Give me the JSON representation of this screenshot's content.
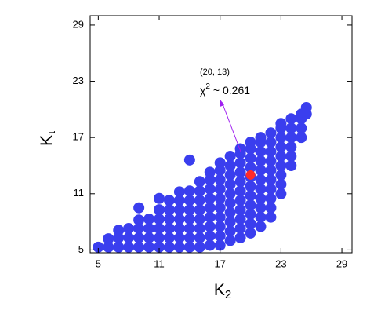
{
  "chart_data": {
    "type": "scatter",
    "xlabel": {
      "text": "K",
      "subscript": "2"
    },
    "ylabel": {
      "text": "K",
      "subscript": "τ"
    },
    "xlim": [
      4.2,
      30
    ],
    "ylim": [
      4.7,
      30
    ],
    "xticks": [
      5,
      11,
      17,
      23,
      29
    ],
    "yticks": [
      5,
      11,
      17,
      23,
      29
    ],
    "annotation": {
      "point": "(20, 13)",
      "symbol": "χ",
      "power": "2",
      "text": "~ 0.261"
    },
    "series": [
      {
        "color": "#3a3eee",
        "x": [
          5,
          6,
          6,
          7,
          7,
          7,
          8,
          8,
          8,
          9,
          9,
          9,
          9,
          9,
          10,
          10,
          10,
          10,
          11,
          11,
          11,
          11,
          11,
          11,
          12,
          12,
          12,
          12,
          12,
          12,
          13,
          13,
          13,
          13,
          13,
          13,
          13,
          14,
          14,
          14,
          14,
          14,
          14,
          14,
          14,
          15,
          15,
          15,
          15,
          15,
          15,
          15,
          15,
          16,
          16,
          16,
          16,
          16,
          16,
          16,
          16,
          16,
          17,
          17,
          17,
          17,
          17,
          17,
          17,
          17,
          17,
          17,
          18,
          18,
          18,
          18,
          18,
          18,
          18,
          18,
          18,
          18,
          19,
          19,
          19,
          19,
          19,
          19,
          19,
          19,
          19,
          19,
          19,
          20,
          20,
          20,
          20,
          20,
          20,
          20,
          20,
          20,
          20,
          20,
          21,
          21,
          21,
          21,
          21,
          21,
          21,
          21,
          21,
          21,
          21,
          22,
          22,
          22,
          22,
          22,
          22,
          22,
          22,
          22,
          22,
          23,
          23,
          23,
          23,
          23,
          23,
          23,
          23,
          23,
          24,
          24,
          24,
          24,
          24,
          24,
          25,
          25,
          25,
          25,
          25.5,
          25.5
        ],
        "y": [
          5.3,
          5.3,
          6.2,
          5.3,
          6.3,
          7.1,
          5.3,
          6.3,
          7.3,
          5.3,
          6.3,
          7.3,
          8.2,
          9.5,
          5.3,
          6.3,
          7.3,
          8.3,
          5.3,
          6.3,
          7.3,
          8.3,
          9.3,
          10.5,
          5.3,
          6.3,
          7.3,
          8.3,
          9.3,
          10.3,
          5.3,
          6.3,
          7.3,
          8.3,
          9.3,
          10.3,
          11.2,
          5.3,
          6.3,
          7.3,
          8.3,
          9.3,
          10.3,
          11.3,
          14.6,
          5.3,
          6.3,
          7.3,
          8.3,
          9.3,
          10.3,
          11.3,
          12.3,
          5.5,
          6.5,
          7.5,
          8.5,
          9.5,
          10.5,
          11.5,
          12.5,
          13.3,
          5.5,
          6.5,
          7.5,
          8.5,
          9.5,
          10.5,
          11.5,
          12.5,
          13.5,
          14.3,
          6,
          7,
          8,
          9,
          10,
          11,
          12,
          13,
          14,
          15,
          6.3,
          7.3,
          8.3,
          9.3,
          10.3,
          11.3,
          12.3,
          13.3,
          14.3,
          15.3,
          15.8,
          6.8,
          7.8,
          8.8,
          9.8,
          10.8,
          11.8,
          12.8,
          13.8,
          14.8,
          15.8,
          16.5,
          7.5,
          8.5,
          9.5,
          10.5,
          11.5,
          12.5,
          13.5,
          14.5,
          15.5,
          16.5,
          17,
          8.5,
          9.5,
          10.5,
          11.5,
          12.5,
          13.5,
          14.5,
          15.5,
          16.5,
          17.5,
          11,
          12,
          13,
          14,
          15,
          16,
          17,
          18,
          18.5,
          14,
          15,
          16,
          17,
          18,
          19,
          17,
          18,
          19,
          19.5,
          19.5,
          20.2
        ]
      },
      {
        "color": "#ff2a2a",
        "x": [
          20
        ],
        "y": [
          13
        ]
      }
    ]
  }
}
